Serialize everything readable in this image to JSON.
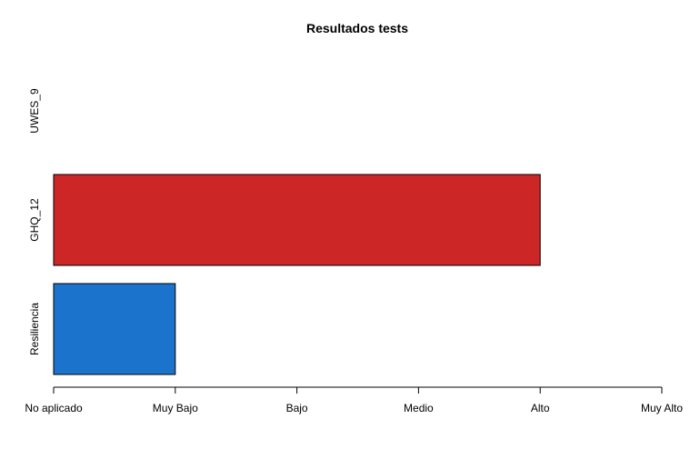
{
  "chart_data": {
    "type": "bar",
    "orientation": "horizontal",
    "title": "Resultados tests",
    "categories": [
      "UWES_9",
      "GHQ_12",
      "Resiliencia"
    ],
    "values": [
      0,
      4,
      1
    ],
    "colors": [
      "#ffffff",
      "#cd2626",
      "#1c73cb"
    ],
    "xaxis": {
      "ticks": [
        0,
        1,
        2,
        3,
        4,
        5
      ],
      "tick_labels": [
        "No aplicado",
        "Muy Bajo",
        "Bajo",
        "Medio",
        "Alto",
        "Muy Alto"
      ],
      "range": [
        0,
        5
      ]
    },
    "grid": false,
    "legend": "none"
  }
}
